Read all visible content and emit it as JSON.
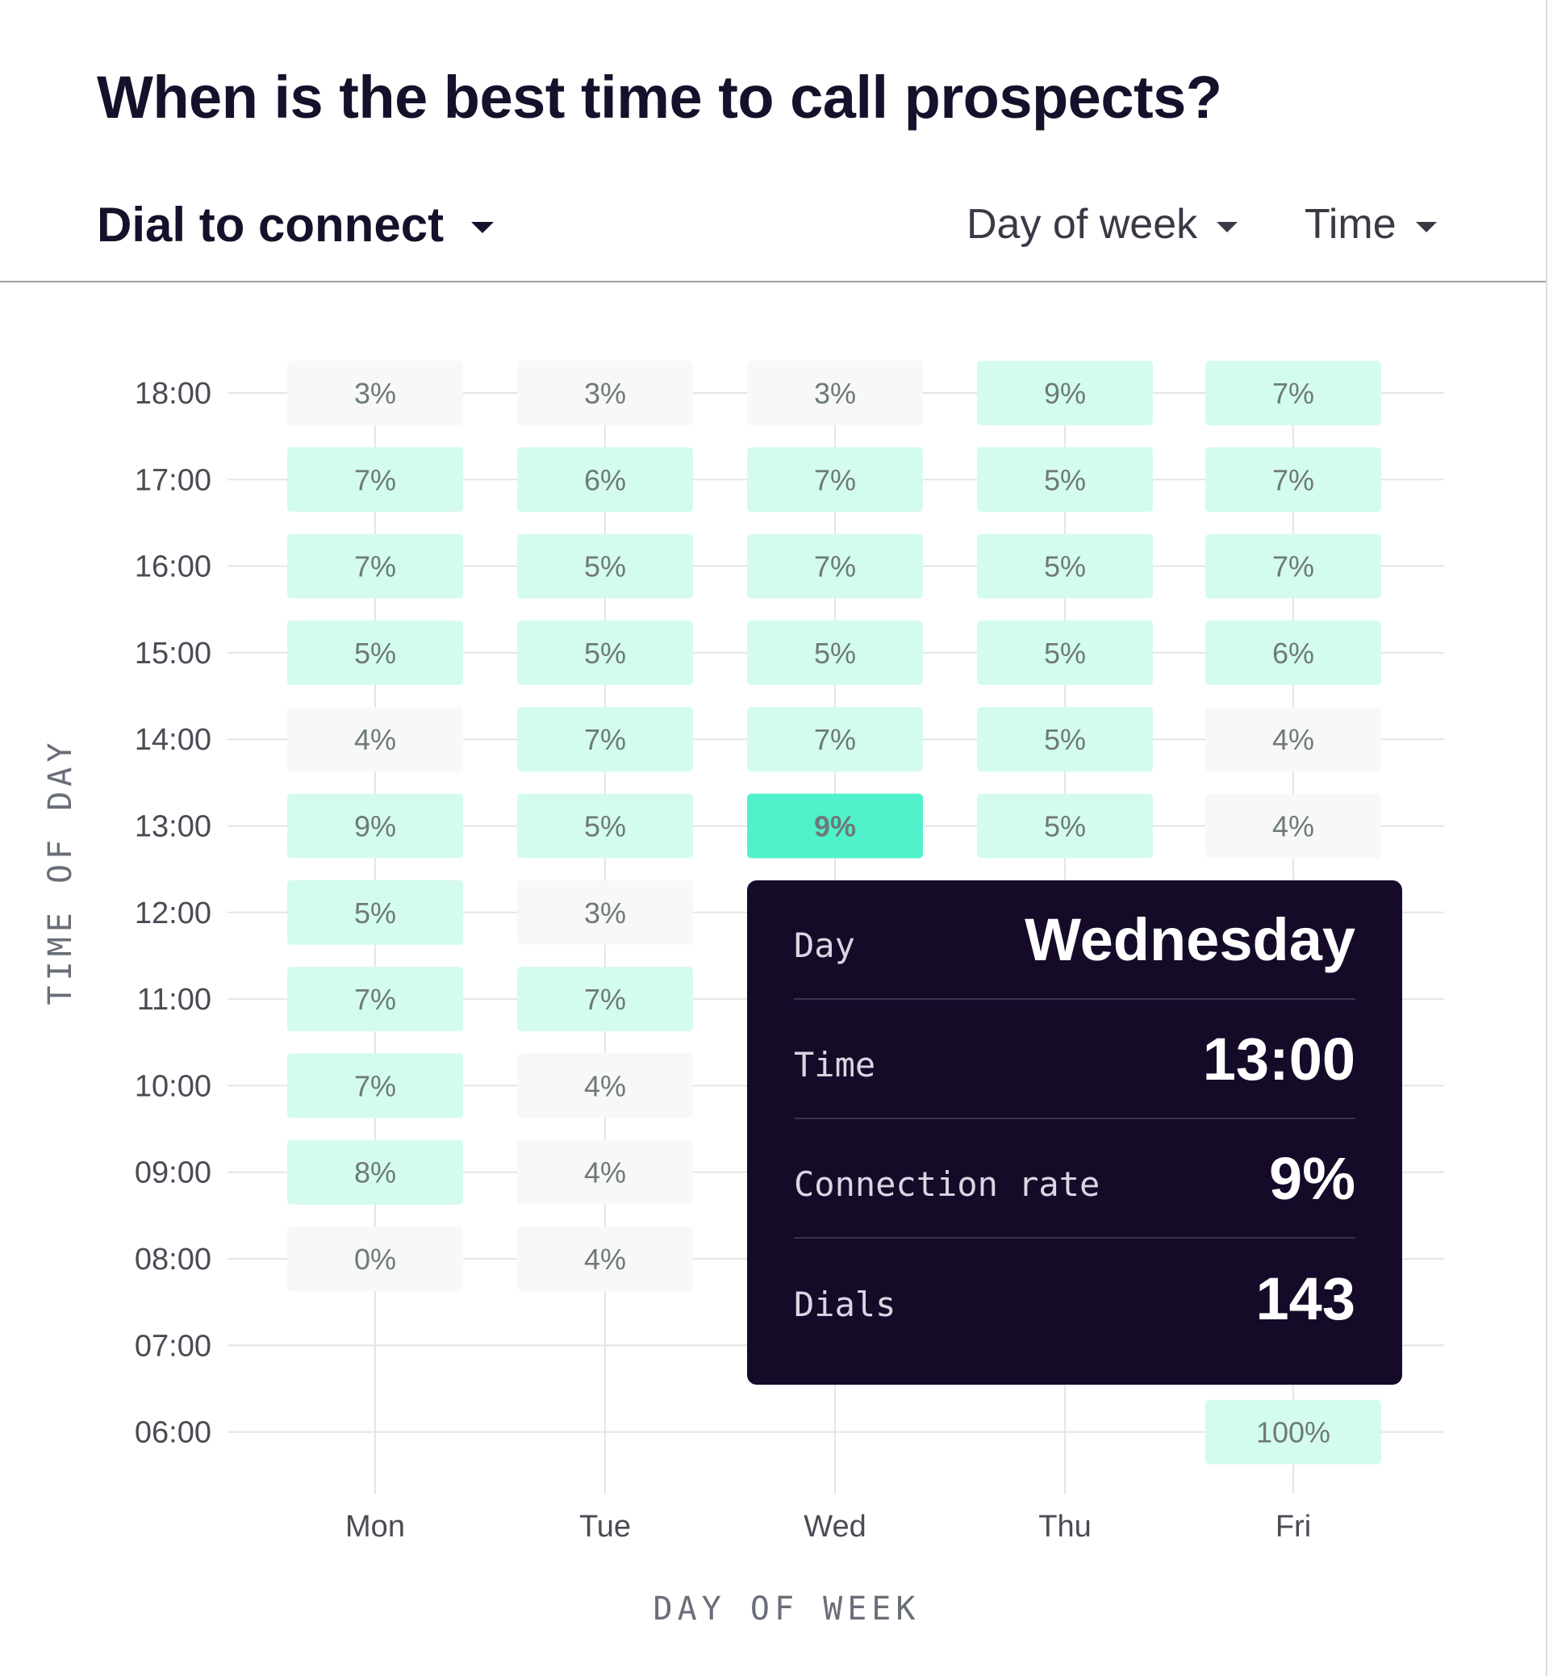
{
  "title": "When is the best time to call prospects?",
  "controls": {
    "metric_label": "Dial to connect",
    "dow_label": "Day of week",
    "time_label": "Time"
  },
  "colors": {
    "cell_low": "#f7f8f7",
    "cell_mid": "#d4fbf0",
    "cell_highlight": "#4ff2cb",
    "tooltip_bg": "#150b29"
  },
  "chart_data": {
    "type": "heatmap",
    "title": "When is the best time to call prospects?",
    "xlabel": "DAY OF WEEK",
    "ylabel": "TIME OF DAY",
    "x": [
      "Mon",
      "Tue",
      "Wed",
      "Thu",
      "Fri"
    ],
    "y": [
      "06:00",
      "07:00",
      "08:00",
      "09:00",
      "10:00",
      "11:00",
      "12:00",
      "13:00",
      "14:00",
      "15:00",
      "16:00",
      "17:00",
      "18:00"
    ],
    "cells": [
      {
        "day": "Mon",
        "time": "18:00",
        "value": 3
      },
      {
        "day": "Tue",
        "time": "18:00",
        "value": 3
      },
      {
        "day": "Wed",
        "time": "18:00",
        "value": 3
      },
      {
        "day": "Thu",
        "time": "18:00",
        "value": 9
      },
      {
        "day": "Fri",
        "time": "18:00",
        "value": 7
      },
      {
        "day": "Mon",
        "time": "17:00",
        "value": 7
      },
      {
        "day": "Tue",
        "time": "17:00",
        "value": 6
      },
      {
        "day": "Wed",
        "time": "17:00",
        "value": 7
      },
      {
        "day": "Thu",
        "time": "17:00",
        "value": 5
      },
      {
        "day": "Fri",
        "time": "17:00",
        "value": 7
      },
      {
        "day": "Mon",
        "time": "16:00",
        "value": 7
      },
      {
        "day": "Tue",
        "time": "16:00",
        "value": 5
      },
      {
        "day": "Wed",
        "time": "16:00",
        "value": 7
      },
      {
        "day": "Thu",
        "time": "16:00",
        "value": 5
      },
      {
        "day": "Fri",
        "time": "16:00",
        "value": 7
      },
      {
        "day": "Mon",
        "time": "15:00",
        "value": 5
      },
      {
        "day": "Tue",
        "time": "15:00",
        "value": 5
      },
      {
        "day": "Wed",
        "time": "15:00",
        "value": 5
      },
      {
        "day": "Thu",
        "time": "15:00",
        "value": 5
      },
      {
        "day": "Fri",
        "time": "15:00",
        "value": 6
      },
      {
        "day": "Mon",
        "time": "14:00",
        "value": 4
      },
      {
        "day": "Tue",
        "time": "14:00",
        "value": 7
      },
      {
        "day": "Wed",
        "time": "14:00",
        "value": 7
      },
      {
        "day": "Thu",
        "time": "14:00",
        "value": 5
      },
      {
        "day": "Fri",
        "time": "14:00",
        "value": 4
      },
      {
        "day": "Mon",
        "time": "13:00",
        "value": 9
      },
      {
        "day": "Tue",
        "time": "13:00",
        "value": 5
      },
      {
        "day": "Wed",
        "time": "13:00",
        "value": 9,
        "highlight": true
      },
      {
        "day": "Thu",
        "time": "13:00",
        "value": 5
      },
      {
        "day": "Fri",
        "time": "13:00",
        "value": 4
      },
      {
        "day": "Mon",
        "time": "12:00",
        "value": 5
      },
      {
        "day": "Tue",
        "time": "12:00",
        "value": 3
      },
      {
        "day": "Mon",
        "time": "11:00",
        "value": 7
      },
      {
        "day": "Tue",
        "time": "11:00",
        "value": 7
      },
      {
        "day": "Mon",
        "time": "10:00",
        "value": 7
      },
      {
        "day": "Tue",
        "time": "10:00",
        "value": 4
      },
      {
        "day": "Mon",
        "time": "09:00",
        "value": 8
      },
      {
        "day": "Tue",
        "time": "09:00",
        "value": 4
      },
      {
        "day": "Mon",
        "time": "08:00",
        "value": 0
      },
      {
        "day": "Tue",
        "time": "08:00",
        "value": 4
      },
      {
        "day": "Fri",
        "time": "06:00",
        "value": 100
      }
    ],
    "grid": true
  },
  "tooltip": {
    "rows": [
      {
        "label": "Day",
        "value": "Wednesday"
      },
      {
        "label": "Time",
        "value": "13:00"
      },
      {
        "label": "Connection rate",
        "value": "9%"
      },
      {
        "label": "Dials",
        "value": "143"
      }
    ]
  }
}
